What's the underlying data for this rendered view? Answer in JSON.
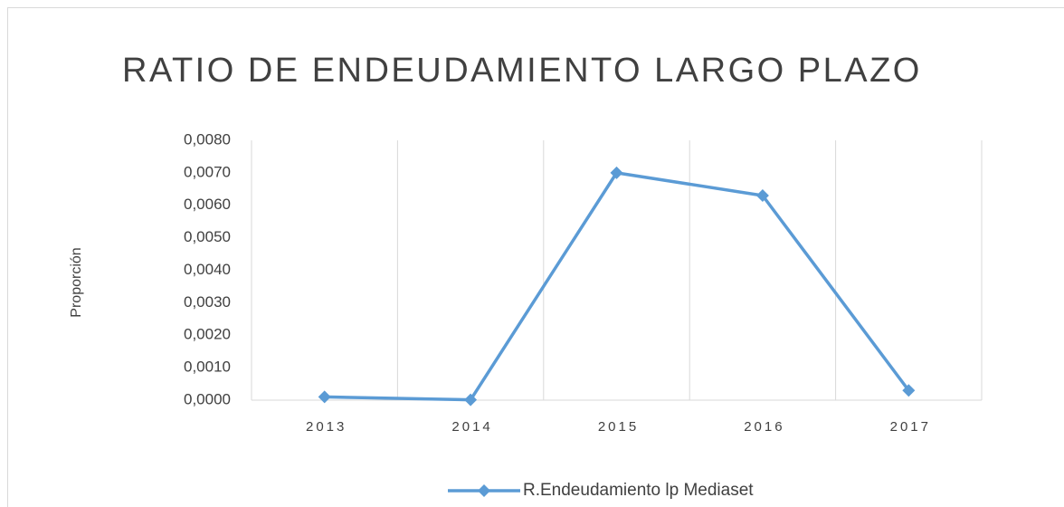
{
  "chart_data": {
    "type": "line",
    "title": "RATIO DE ENDEUDAMIENTO LARGO PLAZO",
    "y_label": "Proporción",
    "categories": [
      "2013",
      "2014",
      "2015",
      "2016",
      "2017"
    ],
    "series": [
      {
        "name": "R.Endeudamiento lp Mediaset",
        "color": "#5b9bd5",
        "values": [
          0.0001,
          1e-05,
          0.007,
          0.0063,
          0.0003
        ]
      }
    ],
    "ylim": [
      0,
      0.008
    ],
    "yticks": [
      {
        "value": 0,
        "label": "0,0000"
      },
      {
        "value": 0.001,
        "label": "0,0010"
      },
      {
        "value": 0.002,
        "label": "0,0020"
      },
      {
        "value": 0.003,
        "label": "0,0030"
      },
      {
        "value": 0.004,
        "label": "0,0040"
      },
      {
        "value": 0.005,
        "label": "0,0050"
      },
      {
        "value": 0.006,
        "label": "0,0060"
      },
      {
        "value": 0.007,
        "label": "0,0070"
      },
      {
        "value": 0.008,
        "label": "0,0080"
      }
    ],
    "legend": "bottom"
  }
}
